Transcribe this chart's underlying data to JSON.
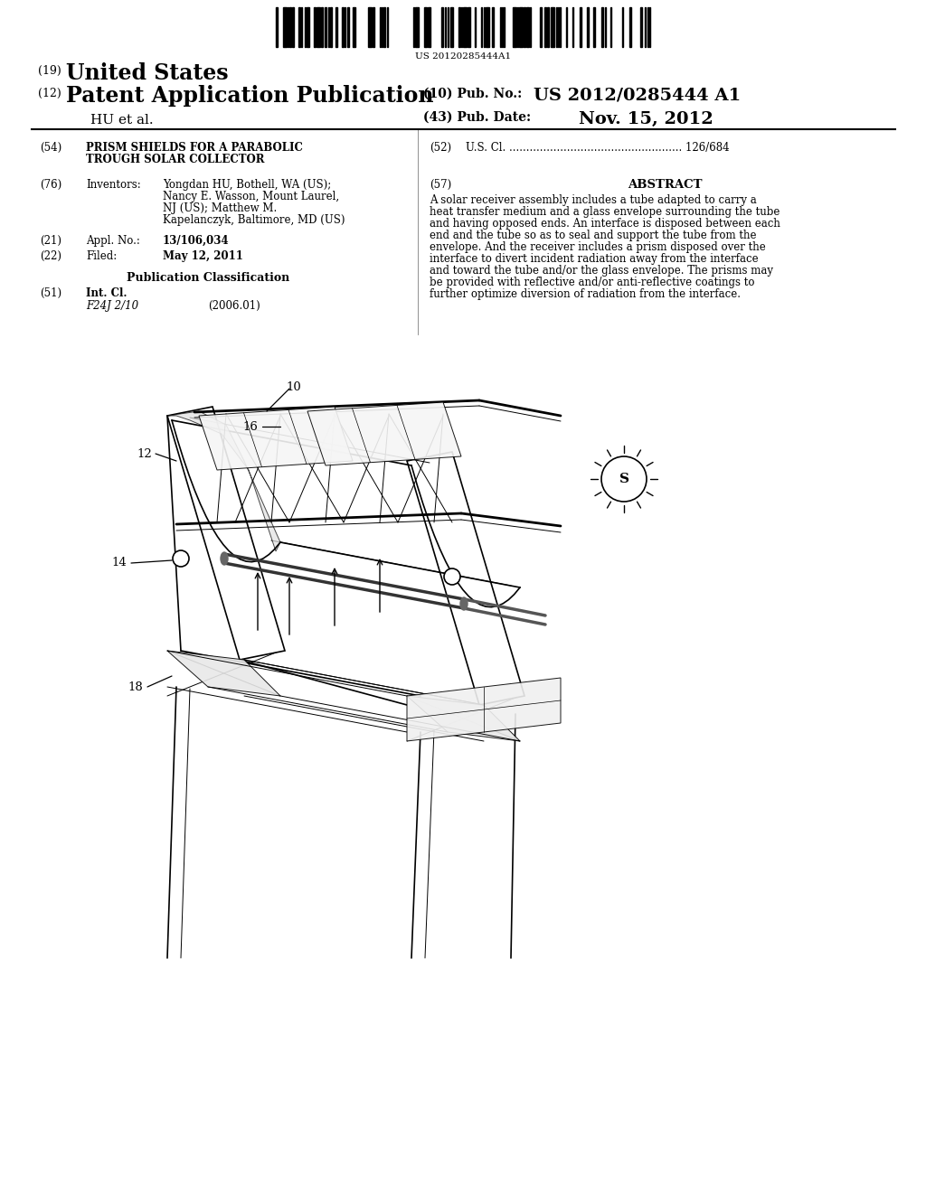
{
  "background_color": "#ffffff",
  "barcode_text": "US 20120285444A1",
  "title_19_prefix": "(19) ",
  "title_19_main": "United States",
  "title_12_prefix": "(12) ",
  "title_12_main": "Patent Application Publication",
  "author": "HU et al.",
  "pub_no_label": "(10) Pub. No.:",
  "pub_no": "US 2012/0285444 A1",
  "pub_date_label": "(43) Pub. Date:",
  "pub_date": "Nov. 15, 2012",
  "field54_label": "(54)",
  "field54_line1": "PRISM SHIELDS FOR A PARABOLIC",
  "field54_line2": "TROUGH SOLAR COLLECTOR",
  "field52_label": "(52)",
  "field52": "U.S. Cl. ................................................... 126/684",
  "field76_label": "(76)",
  "field76_title": "Inventors:",
  "field76_lines": [
    "Yongdan HU, Bothell, WA (US);",
    "Nancy E. Wasson, Mount Laurel,",
    "NJ (US); Matthew M.",
    "Kapelanczyk, Baltimore, MD (US)"
  ],
  "field57_label": "(57)",
  "field57_title": "ABSTRACT",
  "field57_text": "A solar receiver assembly includes a tube adapted to carry a heat transfer medium and a glass envelope surrounding the tube and having opposed ends. An interface is disposed between each end and the tube so as to seal and support the tube from the envelope. And the receiver includes a prism disposed over the interface to divert incident radiation away from the interface and toward the tube and/or the glass envelope. The prisms may be provided with reflective and/or anti-reflective coatings to further optimize diversion of radiation from the interface.",
  "field21_label": "(21)",
  "field21_title": "Appl. No.:",
  "field21_val": "13/106,034",
  "field22_label": "(22)",
  "field22_title": "Filed:",
  "field22_val": "May 12, 2011",
  "pub_class_title": "Publication Classification",
  "field51_label": "(51)",
  "field51_title": "Int. Cl.",
  "field51_class": "F24J 2/10",
  "field51_year": "(2006.01)",
  "diagram_labels": [
    "10",
    "12",
    "14",
    "16",
    "18"
  ],
  "sun_label": "S",
  "lw_thin": 0.7,
  "lw_med": 1.2,
  "lw_thick": 2.0
}
